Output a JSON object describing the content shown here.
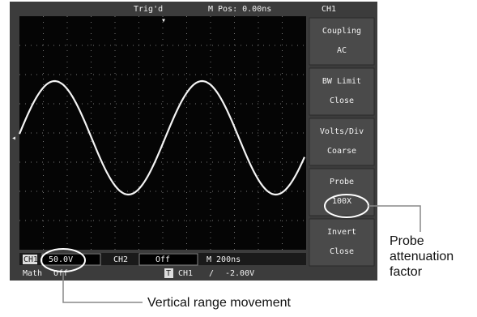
{
  "status_bar": {
    "trigger": "Trig'd",
    "position": "M Pos: 0.00ns",
    "channel": "CH1"
  },
  "menu": [
    {
      "title": "Coupling",
      "value": "AC"
    },
    {
      "title": "BW Limit",
      "value": "Close"
    },
    {
      "title": "Volts/Div",
      "value": "Coarse"
    },
    {
      "title": "Probe",
      "value": "100X"
    },
    {
      "title": "Invert",
      "value": "Close"
    }
  ],
  "bottom_bar": {
    "ch1_label": "CH1",
    "ch1_scale": "50.0V",
    "ch2_label": "CH2",
    "ch2_state": "Off",
    "timebase": "M 200ns",
    "math_label": "Math",
    "math_state": "Off",
    "trigger_marker": "T",
    "trigger_source": "CH1",
    "trigger_edge": "/",
    "trigger_level": "-2.00V"
  },
  "annotations": {
    "probe": [
      "Probe",
      "attenuation",
      "factor"
    ],
    "vertical": "Vertical range movement"
  }
}
